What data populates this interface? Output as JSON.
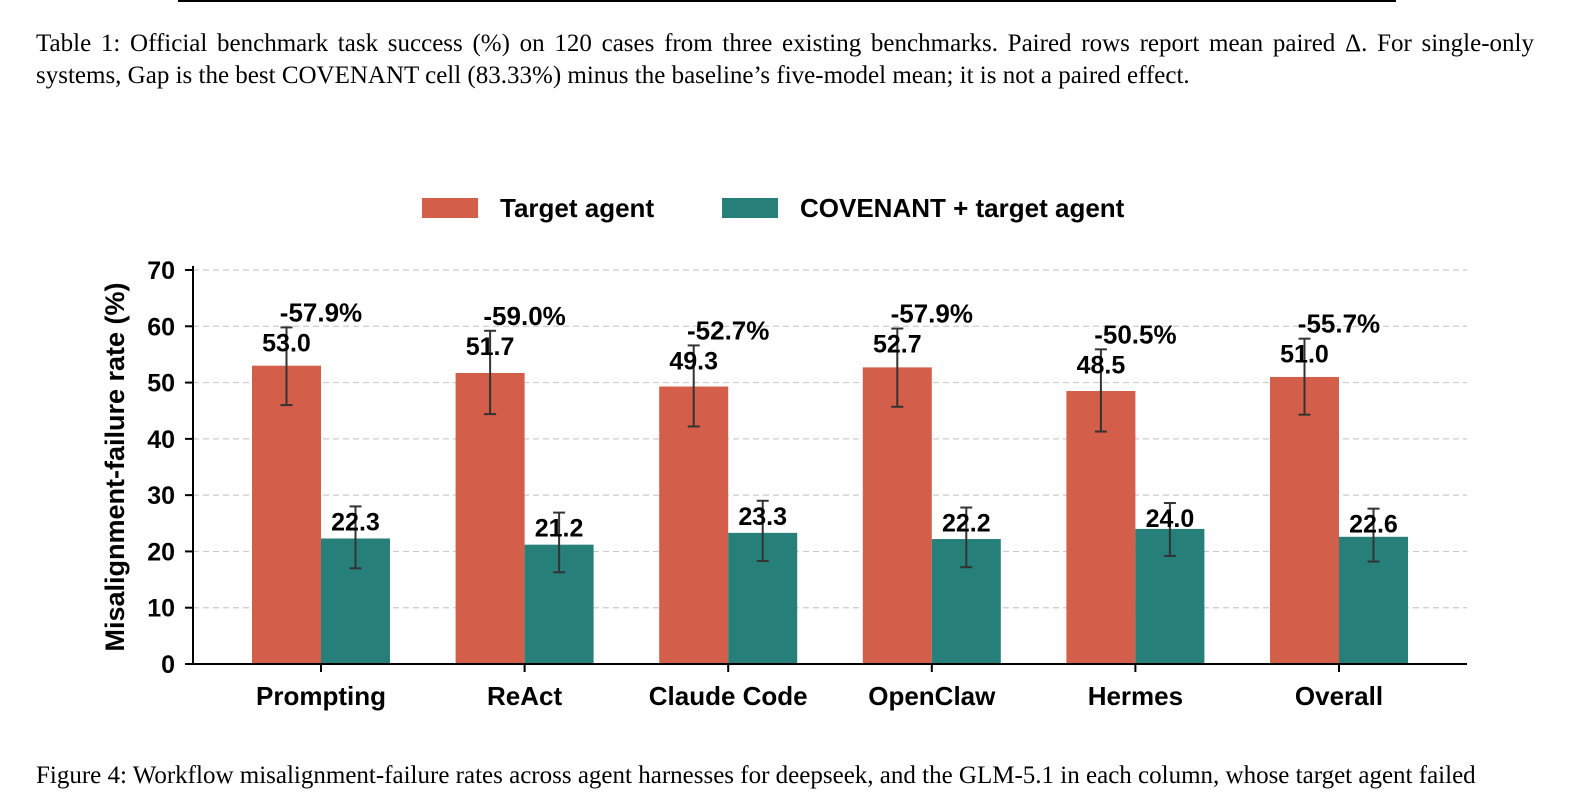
{
  "caption": {
    "text": "Table 1: Official benchmark task success (%) on 120 cases from three existing benchmarks. Paired rows report mean paired Δ. For single-only systems, Gap is the best COVENANT cell (83.33%) minus the baseline’s five-model mean; it is not a paired effect."
  },
  "next_caption": {
    "text": "Figure 4: Workflow misalignment-failure rates across agent harnesses for deepseek, and the GLM-5.1 in each column, whose target agent failed"
  },
  "colors": {
    "target": "#d35e4a",
    "covenant": "#277f79",
    "axis": "#000000",
    "grid": "#cccccc",
    "errorbar": "#333333"
  },
  "chart_data": {
    "type": "bar",
    "title": "",
    "xlabel": "",
    "ylabel": "Misalignment-failure rate (%)",
    "ylim": [
      0,
      70
    ],
    "yticks": [
      0,
      10,
      20,
      30,
      40,
      50,
      60,
      70
    ],
    "grid": true,
    "legend_position": "top-center",
    "categories": [
      "Prompting",
      "ReAct",
      "Claude Code",
      "OpenClaw",
      "Hermes",
      "Overall"
    ],
    "series": [
      {
        "name": "Target agent",
        "color_key": "target",
        "values": [
          53.0,
          51.7,
          49.3,
          52.7,
          48.5,
          51.0
        ],
        "labels": [
          "53.0",
          "51.7",
          "49.3",
          "52.7",
          "48.5",
          "51.0"
        ],
        "err_low": [
          46.0,
          44.4,
          42.2,
          45.7,
          41.3,
          44.3
        ],
        "err_high": [
          59.8,
          59.2,
          56.6,
          59.6,
          55.9,
          57.8
        ]
      },
      {
        "name": "COVENANT + target agent",
        "color_key": "covenant",
        "values": [
          22.3,
          21.2,
          23.3,
          22.2,
          24.0,
          22.6
        ],
        "labels": [
          "22.3",
          "21.2",
          "23.3",
          "22.2",
          "24.0",
          "22.6"
        ],
        "err_low": [
          17.0,
          16.3,
          18.3,
          17.2,
          19.2,
          18.2
        ],
        "err_high": [
          28.0,
          26.9,
          29.0,
          27.8,
          28.6,
          27.6
        ]
      }
    ],
    "annotations": [
      "-57.9%",
      "-59.0%",
      "-52.7%",
      "-57.9%",
      "-50.5%",
      "-55.7%"
    ]
  }
}
